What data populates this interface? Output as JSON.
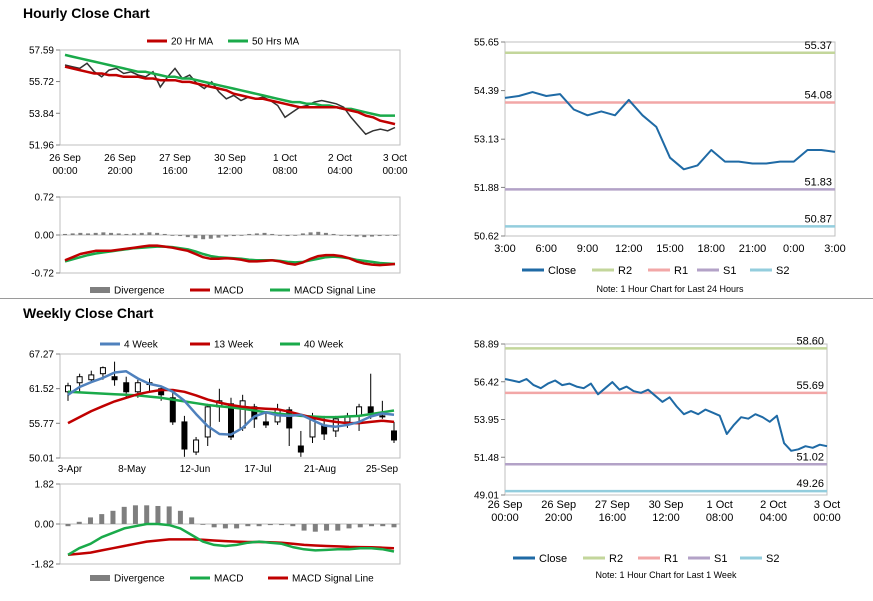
{
  "titles": {
    "hourly": "Hourly Close Chart",
    "weekly": "Weekly Close Chart"
  },
  "colors": {
    "close": "#1f6aa5",
    "ma_red": "#c00000",
    "ma_green": "#1aaa4a",
    "ma_blue": "#4f81bd",
    "r2": "#c3d69b",
    "r1": "#f2a7a7",
    "s1": "#b3a2c7",
    "s2": "#93cddd",
    "bar": "#7f7f7f"
  },
  "chart_data": [
    {
      "id": "hourly_price",
      "type": "line",
      "title": "Hourly Close Chart",
      "legend": [
        "20 Hr MA",
        "50 Hrs MA"
      ],
      "yticks": [
        "57.59",
        "55.72",
        "53.84",
        "51.96"
      ],
      "ylim": [
        51.96,
        57.59
      ],
      "xticks": [
        [
          "26 Sep",
          "00:00"
        ],
        [
          "26 Sep",
          "20:00"
        ],
        [
          "27 Sep",
          "16:00"
        ],
        [
          "30 Sep",
          "12:00"
        ],
        [
          "1 Oct",
          "08:00"
        ],
        [
          "2 Oct",
          "04:00"
        ],
        [
          "3 Oct",
          "00:00"
        ]
      ],
      "series": [
        {
          "name": "Close",
          "values": [
            56.7,
            56.6,
            56.5,
            56.8,
            56.3,
            56.0,
            56.4,
            56.5,
            56.2,
            56.3,
            56.1,
            56.0,
            56.3,
            55.4,
            56.0,
            56.5,
            55.9,
            56.1,
            55.6,
            55.3,
            55.7,
            55.1,
            54.7,
            54.9,
            54.6,
            54.8,
            54.7,
            54.8,
            54.6,
            54.3,
            53.6,
            53.9,
            54.2,
            54.3,
            54.5,
            54.6,
            54.5,
            54.4,
            54.2,
            53.6,
            53.1,
            52.6,
            52.8,
            52.9,
            52.8,
            53.0
          ]
        },
        {
          "name": "20 Hr MA",
          "values": [
            56.6,
            56.5,
            56.4,
            56.3,
            56.2,
            56.2,
            56.1,
            56.1,
            56.0,
            56.0,
            56.0,
            55.9,
            55.9,
            55.8,
            55.8,
            55.8,
            55.7,
            55.7,
            55.6,
            55.5,
            55.4,
            55.3,
            55.2,
            55.0,
            54.9,
            54.8,
            54.7,
            54.7,
            54.6,
            54.5,
            54.4,
            54.3,
            54.2,
            54.2,
            54.2,
            54.2,
            54.2,
            54.2,
            54.1,
            54.0,
            53.9,
            53.7,
            53.6,
            53.4,
            53.3,
            53.2
          ]
        },
        {
          "name": "50 Hrs MA",
          "values": [
            57.3,
            57.2,
            57.1,
            57.0,
            56.9,
            56.8,
            56.7,
            56.6,
            56.5,
            56.4,
            56.3,
            56.3,
            56.2,
            56.1,
            56.0,
            56.0,
            55.9,
            55.9,
            55.8,
            55.7,
            55.6,
            55.5,
            55.4,
            55.3,
            55.2,
            55.1,
            55.0,
            54.9,
            54.8,
            54.7,
            54.6,
            54.5,
            54.5,
            54.4,
            54.4,
            54.3,
            54.3,
            54.2,
            54.1,
            54.1,
            54.0,
            53.9,
            53.8,
            53.7,
            53.7,
            53.7
          ]
        }
      ]
    },
    {
      "id": "hourly_macd",
      "type": "bar",
      "legend": [
        "Divergence",
        "MACD",
        "MACD Signal Line"
      ],
      "yticks": [
        "0.72",
        "0.00",
        "-0.72"
      ],
      "ylim": [
        -0.72,
        0.72
      ],
      "series": [
        {
          "name": "Divergence",
          "values": [
            0.02,
            0.03,
            0.04,
            0.03,
            0.04,
            0.05,
            0.04,
            0.03,
            0.02,
            0.03,
            0.04,
            0.05,
            0.04,
            0.02,
            0.0,
            -0.02,
            -0.04,
            -0.06,
            -0.08,
            -0.07,
            -0.05,
            -0.03,
            -0.02,
            0.0,
            0.02,
            0.03,
            0.04,
            0.02,
            0.0,
            -0.02,
            0.0,
            0.03,
            0.05,
            0.06,
            0.04,
            0.02,
            -0.01,
            -0.02,
            -0.03,
            -0.04,
            -0.03,
            -0.02,
            -0.01,
            0.0
          ]
        },
        {
          "name": "MACD",
          "values": [
            -0.48,
            -0.42,
            -0.36,
            -0.33,
            -0.3,
            -0.3,
            -0.3,
            -0.28,
            -0.26,
            -0.24,
            -0.22,
            -0.2,
            -0.2,
            -0.22,
            -0.24,
            -0.27,
            -0.3,
            -0.36,
            -0.42,
            -0.45,
            -0.45,
            -0.44,
            -0.45,
            -0.47,
            -0.5,
            -0.5,
            -0.49,
            -0.48,
            -0.5,
            -0.54,
            -0.56,
            -0.52,
            -0.45,
            -0.4,
            -0.38,
            -0.38,
            -0.4,
            -0.44,
            -0.5,
            -0.54,
            -0.56,
            -0.57,
            -0.56,
            -0.55
          ]
        },
        {
          "name": "MACD Signal Line",
          "values": [
            -0.5,
            -0.46,
            -0.42,
            -0.38,
            -0.35,
            -0.33,
            -0.31,
            -0.29,
            -0.27,
            -0.25,
            -0.24,
            -0.23,
            -0.22,
            -0.22,
            -0.23,
            -0.25,
            -0.27,
            -0.31,
            -0.36,
            -0.4,
            -0.42,
            -0.43,
            -0.44,
            -0.45,
            -0.47,
            -0.48,
            -0.48,
            -0.48,
            -0.49,
            -0.51,
            -0.52,
            -0.51,
            -0.48,
            -0.45,
            -0.42,
            -0.41,
            -0.42,
            -0.44,
            -0.47,
            -0.49,
            -0.51,
            -0.53,
            -0.54,
            -0.55
          ]
        }
      ]
    },
    {
      "id": "hourly_24h",
      "type": "line",
      "note": "Note: 1 Hour Chart for Last 24 Hours",
      "legend": [
        "Close",
        "R2",
        "R1",
        "S1",
        "S2"
      ],
      "yticks": [
        "55.65",
        "54.39",
        "53.13",
        "51.88",
        "50.62"
      ],
      "ylim": [
        50.62,
        55.65
      ],
      "xticks": [
        "3:00",
        "6:00",
        "9:00",
        "12:00",
        "15:00",
        "18:00",
        "21:00",
        "0:00",
        "3:00"
      ],
      "levels": {
        "R2": 55.37,
        "R1": 54.08,
        "S1": 51.83,
        "S2": 50.87
      },
      "level_labels": {
        "R2": "55.37",
        "R1": "54.08",
        "S1": "51.83",
        "S2": "50.87"
      },
      "series": [
        {
          "name": "Close",
          "values": [
            54.2,
            54.25,
            54.35,
            54.25,
            54.3,
            53.9,
            53.75,
            53.85,
            53.75,
            54.15,
            53.75,
            53.45,
            52.65,
            52.35,
            52.45,
            52.85,
            52.55,
            52.55,
            52.5,
            52.5,
            52.55,
            52.55,
            52.85,
            52.85,
            52.8
          ]
        }
      ]
    },
    {
      "id": "weekly_price",
      "type": "line",
      "title": "Weekly Close Chart",
      "legend": [
        "4 Week",
        "13 Week",
        "40 Week"
      ],
      "yticks": [
        "67.27",
        "61.52",
        "55.77",
        "50.01"
      ],
      "ylim": [
        50.01,
        67.27
      ],
      "xticks": [
        "3-Apr",
        "8-May",
        "12-Jun",
        "17-Jul",
        "21-Aug",
        "25-Sep"
      ],
      "candles": [
        {
          "o": 61.0,
          "h": 62.5,
          "l": 59.5,
          "c": 62.0
        },
        {
          "o": 62.5,
          "h": 64.0,
          "l": 61.0,
          "c": 63.5
        },
        {
          "o": 63.0,
          "h": 64.5,
          "l": 62.5,
          "c": 63.8
        },
        {
          "o": 64.0,
          "h": 65.2,
          "l": 63.0,
          "c": 65.0
        },
        {
          "o": 63.5,
          "h": 66.0,
          "l": 62.0,
          "c": 63.0
        },
        {
          "o": 62.5,
          "h": 63.5,
          "l": 60.0,
          "c": 61.0
        },
        {
          "o": 61.0,
          "h": 63.0,
          "l": 60.0,
          "c": 62.5
        },
        {
          "o": 62.5,
          "h": 63.2,
          "l": 61.0,
          "c": 62.2
        },
        {
          "o": 61.5,
          "h": 61.8,
          "l": 59.5,
          "c": 60.5
        },
        {
          "o": 60.0,
          "h": 61.0,
          "l": 55.5,
          "c": 56.0
        },
        {
          "o": 56.0,
          "h": 57.0,
          "l": 50.2,
          "c": 51.5
        },
        {
          "o": 51.0,
          "h": 53.5,
          "l": 50.5,
          "c": 53.0
        },
        {
          "o": 53.5,
          "h": 59.0,
          "l": 52.0,
          "c": 58.5
        },
        {
          "o": 58.5,
          "h": 61.5,
          "l": 56.0,
          "c": 59.5
        },
        {
          "o": 59.0,
          "h": 60.0,
          "l": 53.0,
          "c": 53.5
        },
        {
          "o": 55.0,
          "h": 60.5,
          "l": 54.5,
          "c": 59.5
        },
        {
          "o": 58.5,
          "h": 59.0,
          "l": 55.0,
          "c": 56.5
        },
        {
          "o": 56.0,
          "h": 57.5,
          "l": 55.0,
          "c": 55.5
        },
        {
          "o": 56.0,
          "h": 59.0,
          "l": 55.5,
          "c": 58.0
        },
        {
          "o": 58.0,
          "h": 58.5,
          "l": 52.0,
          "c": 55.0
        },
        {
          "o": 52.0,
          "h": 54.5,
          "l": 50.2,
          "c": 51.0
        },
        {
          "o": 53.5,
          "h": 57.5,
          "l": 52.5,
          "c": 56.5
        },
        {
          "o": 55.5,
          "h": 57.0,
          "l": 53.0,
          "c": 54.0
        },
        {
          "o": 54.5,
          "h": 57.0,
          "l": 53.5,
          "c": 56.5
        },
        {
          "o": 56.0,
          "h": 57.5,
          "l": 55.0,
          "c": 57.0
        },
        {
          "o": 57.0,
          "h": 59.0,
          "l": 54.5,
          "c": 58.5
        },
        {
          "o": 58.5,
          "h": 64.0,
          "l": 56.5,
          "c": 57.5
        },
        {
          "o": 57.0,
          "h": 59.5,
          "l": 56.5,
          "c": 57.0
        },
        {
          "o": 54.5,
          "h": 56.0,
          "l": 52.5,
          "c": 53.0
        }
      ],
      "series": [
        {
          "name": "4 Week",
          "values": [
            60.5,
            61.8,
            62.6,
            63.3,
            64.2,
            64.4,
            63.2,
            62.3,
            61.9,
            61.0,
            59.5,
            57.3,
            55.3,
            54.0,
            53.9,
            55.0,
            56.9,
            57.6,
            57.1,
            57.0,
            57.2,
            56.3,
            55.4,
            55.2,
            55.5,
            56.0,
            56.9,
            57.4,
            57.2
          ]
        },
        {
          "name": "13 Week",
          "values": [
            55.8,
            56.8,
            57.8,
            58.6,
            59.4,
            60.0,
            60.6,
            61.0,
            61.3,
            61.3,
            61.0,
            60.4,
            59.7,
            59.2,
            58.8,
            58.5,
            58.3,
            58.2,
            58.1,
            57.7,
            57.2,
            56.7,
            56.3,
            56.0,
            55.8,
            55.8,
            56.0,
            56.2,
            56.0
          ]
        },
        {
          "name": "40 Week",
          "values": [
            61.0,
            60.9,
            60.8,
            60.7,
            60.6,
            60.5,
            60.4,
            60.2,
            60.0,
            59.7,
            59.4,
            59.1,
            58.8,
            58.6,
            58.4,
            58.2,
            57.9,
            57.6,
            57.4,
            57.2,
            57.0,
            56.9,
            56.8,
            56.8,
            56.9,
            57.0,
            57.3,
            57.6,
            57.9
          ]
        }
      ]
    },
    {
      "id": "weekly_macd",
      "type": "bar",
      "legend": [
        "Divergence",
        "MACD",
        "MACD Signal Line"
      ],
      "yticks": [
        "1.82",
        "0.00",
        "-1.82"
      ],
      "ylim": [
        -1.82,
        1.82
      ],
      "series": [
        {
          "name": "Divergence",
          "values": [
            -0.1,
            0.1,
            0.3,
            0.45,
            0.6,
            0.78,
            0.85,
            0.85,
            0.82,
            0.8,
            0.6,
            0.3,
            0.0,
            -0.15,
            -0.2,
            -0.2,
            -0.1,
            -0.1,
            -0.05,
            -0.05,
            -0.1,
            -0.3,
            -0.35,
            -0.3,
            -0.3,
            -0.2,
            -0.15,
            -0.1,
            -0.1,
            -0.15
          ]
        },
        {
          "name": "MACD",
          "values": [
            -1.4,
            -1.1,
            -0.9,
            -0.6,
            -0.4,
            -0.2,
            -0.1,
            0.0,
            0.0,
            -0.05,
            -0.2,
            -0.5,
            -0.8,
            -0.95,
            -1.0,
            -0.95,
            -0.85,
            -0.8,
            -0.85,
            -0.9,
            -1.05,
            -1.15,
            -1.2,
            -1.18,
            -1.15,
            -1.15,
            -1.1,
            -1.1,
            -1.15,
            -1.25
          ]
        },
        {
          "name": "MACD Signal Line",
          "values": [
            -1.4,
            -1.35,
            -1.3,
            -1.2,
            -1.1,
            -1.0,
            -0.9,
            -0.8,
            -0.75,
            -0.7,
            -0.7,
            -0.7,
            -0.72,
            -0.75,
            -0.78,
            -0.8,
            -0.82,
            -0.82,
            -0.83,
            -0.85,
            -0.9,
            -0.95,
            -0.98,
            -1.0,
            -1.02,
            -1.04,
            -1.05,
            -1.06,
            -1.08,
            -1.1
          ]
        }
      ]
    },
    {
      "id": "weekly_1w",
      "type": "line",
      "note": "Note: 1 Hour Chart for Last 1 Week",
      "legend": [
        "Close",
        "R2",
        "R1",
        "S1",
        "S2"
      ],
      "yticks": [
        "58.89",
        "56.42",
        "53.95",
        "51.48",
        "49.01"
      ],
      "ylim": [
        49.01,
        58.89
      ],
      "xticks": [
        [
          "26 Sep",
          "00:00"
        ],
        [
          "26 Sep",
          "20:00"
        ],
        [
          "27 Sep",
          "16:00"
        ],
        [
          "30 Sep",
          "12:00"
        ],
        [
          "1 Oct",
          "08:00"
        ],
        [
          "2 Oct",
          "04:00"
        ],
        [
          "3 Oct",
          "00:00"
        ]
      ],
      "levels": {
        "R2": 58.6,
        "R1": 55.69,
        "S1": 51.02,
        "S2": 49.26
      },
      "level_labels": {
        "R2": "58.60",
        "R1": "55.69",
        "S1": "51.02",
        "S2": "49.26"
      },
      "series": [
        {
          "name": "Close",
          "values": [
            56.6,
            56.5,
            56.4,
            56.6,
            56.2,
            56.0,
            56.3,
            56.5,
            56.2,
            56.3,
            56.1,
            56.0,
            56.3,
            55.6,
            56.0,
            56.4,
            55.9,
            56.1,
            55.8,
            55.7,
            55.9,
            55.5,
            55.1,
            55.4,
            54.8,
            54.3,
            54.5,
            54.3,
            54.6,
            54.4,
            54.2,
            53.0,
            53.6,
            54.1,
            54.0,
            54.3,
            54.1,
            53.8,
            54.2,
            52.4,
            51.9,
            52.0,
            52.2,
            52.1,
            52.3,
            52.2
          ]
        }
      ]
    }
  ]
}
